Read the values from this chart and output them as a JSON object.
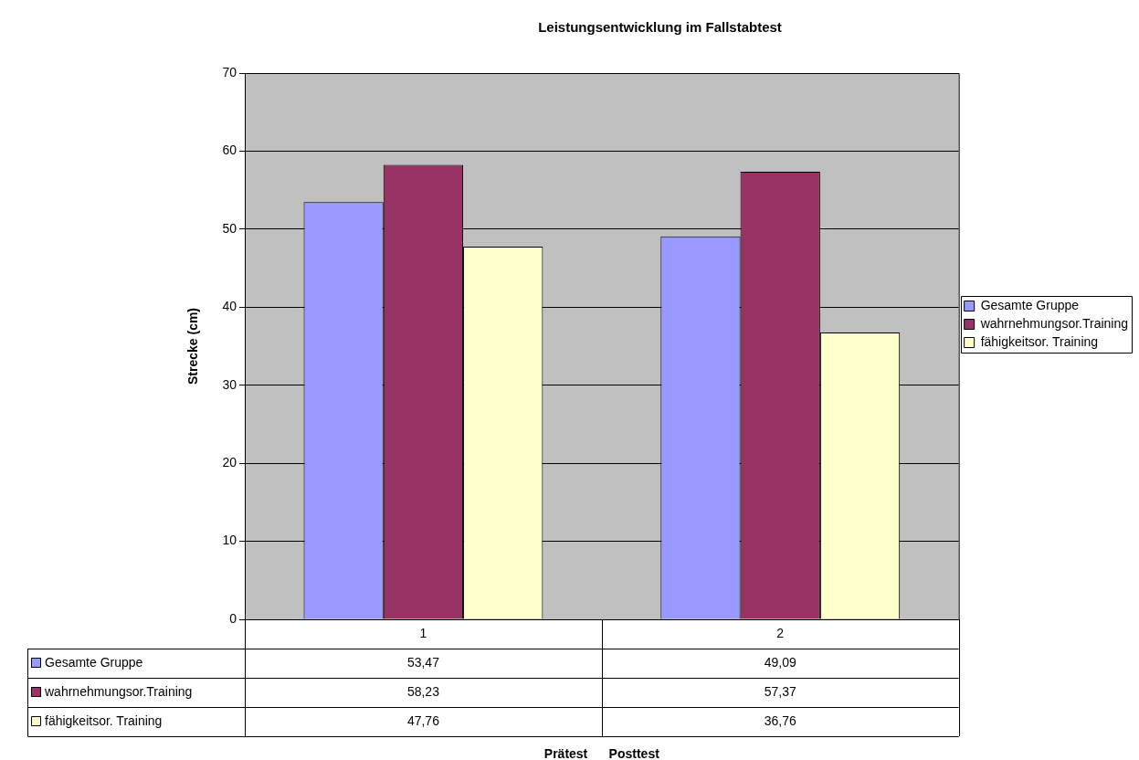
{
  "chart_data": {
    "type": "bar",
    "title": "Leistungsentwicklung im Fallstabtest",
    "annotations": [
      "Prätest      Posttest"
    ],
    "ylabel": "Strecke (cm)",
    "categories": [
      "1",
      "2"
    ],
    "series": [
      {
        "name": "Gesamte Gruppe",
        "color": "#9999ff",
        "values": [
          53.47,
          49.09
        ],
        "value_labels": [
          "53,47",
          "49,09"
        ]
      },
      {
        "name": "wahrnehmungsor.Training",
        "color": "#993366",
        "values": [
          58.23,
          57.37
        ],
        "value_labels": [
          "58,23",
          "57,37"
        ]
      },
      {
        "name": "fähigkeitsor. Training",
        "color": "#ffffcc",
        "values": [
          47.76,
          36.76
        ],
        "value_labels": [
          "47,76",
          "36,76"
        ]
      }
    ],
    "ylim": [
      0,
      70
    ],
    "yticks": [
      0,
      10,
      20,
      30,
      40,
      50,
      60,
      70
    ],
    "grid": "y",
    "legend": "right"
  }
}
